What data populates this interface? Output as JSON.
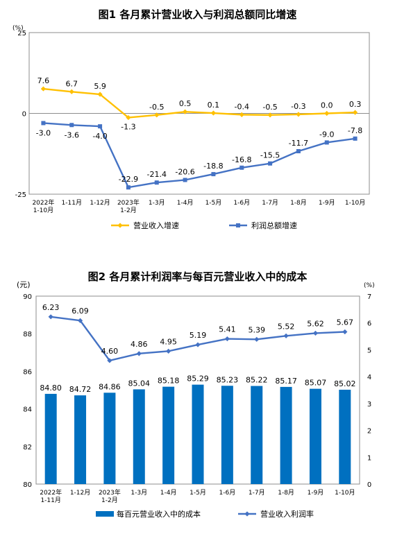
{
  "chart_data": [
    {
      "type": "line",
      "title": "图1  各月累计营业收入与利润总额同比增速",
      "y_unit": "(%)",
      "ylim": [
        -25,
        25
      ],
      "y_ticks": [
        "25",
        "0",
        "-25"
      ],
      "categories": [
        [
          "2022年",
          "1-10月"
        ],
        [
          "1-11月"
        ],
        [
          "1-12月"
        ],
        [
          "2023年",
          "1-2月"
        ],
        [
          "1-3月"
        ],
        [
          "1-4月"
        ],
        [
          "1-5月"
        ],
        [
          "1-6月"
        ],
        [
          "1-7月"
        ],
        [
          "1-8月"
        ],
        [
          "1-9月"
        ],
        [
          "1-10月"
        ]
      ],
      "series": [
        {
          "name": "营业收入增速",
          "color": "#ffc000",
          "values": [
            7.6,
            6.7,
            5.9,
            -1.3,
            -0.5,
            0.5,
            0.1,
            -0.4,
            -0.5,
            -0.3,
            0.0,
            0.3
          ],
          "labels": [
            "7.6",
            "6.7",
            "5.9",
            "-1.3",
            "-0.5",
            "0.5",
            "0.1",
            "-0.4",
            "-0.5",
            "-0.3",
            "0.0",
            "0.3"
          ]
        },
        {
          "name": "利润总额增速",
          "color": "#4472c4",
          "values": [
            -3.0,
            -3.6,
            -4.0,
            -22.9,
            -21.4,
            -20.6,
            -18.8,
            -16.8,
            -15.5,
            -11.7,
            -9.0,
            -7.8
          ],
          "labels": [
            "-3.0",
            "-3.6",
            "-4.0",
            "-22.9",
            "-21.4",
            "-20.6",
            "-18.8",
            "-16.8",
            "-15.5",
            "-11.7",
            "-9.0",
            "-7.8"
          ]
        }
      ],
      "grid": false,
      "legend": "bottom"
    },
    {
      "type": "bar",
      "title": "图2  各月累计利润率与每百元营业收入中的成本",
      "y_unit_left": "(元)",
      "y_unit_right": "(%)",
      "ylim_left": [
        80,
        90
      ],
      "ylim_right": [
        0,
        7
      ],
      "y_ticks_left": [
        "80",
        "82",
        "84",
        "86",
        "88",
        "90"
      ],
      "y_ticks_right": [
        "0",
        "1",
        "2",
        "3",
        "4",
        "5",
        "6",
        "7"
      ],
      "categories": [
        [
          "2022年",
          "1-11月"
        ],
        [
          "1-12月"
        ],
        [
          "2023年",
          "1-2月"
        ],
        [
          "1-3月"
        ],
        [
          "1-4月"
        ],
        [
          "1-5月"
        ],
        [
          "1-6月"
        ],
        [
          "1-7月"
        ],
        [
          "1-8月"
        ],
        [
          "1-9月"
        ],
        [
          "1-10月"
        ]
      ],
      "series": [
        {
          "name": "每百元营业收入中的成本",
          "kind": "bar",
          "axis": "left",
          "color": "#0070c0",
          "values": [
            84.8,
            84.72,
            84.86,
            85.04,
            85.18,
            85.29,
            85.23,
            85.22,
            85.17,
            85.07,
            85.02
          ],
          "labels": [
            "84.80",
            "84.72",
            "84.86",
            "85.04",
            "85.18",
            "85.29",
            "85.23",
            "85.22",
            "85.17",
            "85.07",
            "85.02"
          ]
        },
        {
          "name": "营业收入利润率",
          "kind": "line",
          "axis": "right",
          "color": "#4472c4",
          "values": [
            6.23,
            6.09,
            4.6,
            4.86,
            4.95,
            5.19,
            5.41,
            5.39,
            5.52,
            5.62,
            5.67
          ],
          "labels": [
            "6.23",
            "6.09",
            "4.60",
            "4.86",
            "4.95",
            "5.19",
            "5.41",
            "5.39",
            "5.52",
            "5.62",
            "5.67"
          ]
        }
      ],
      "grid": false,
      "legend": "bottom"
    }
  ]
}
